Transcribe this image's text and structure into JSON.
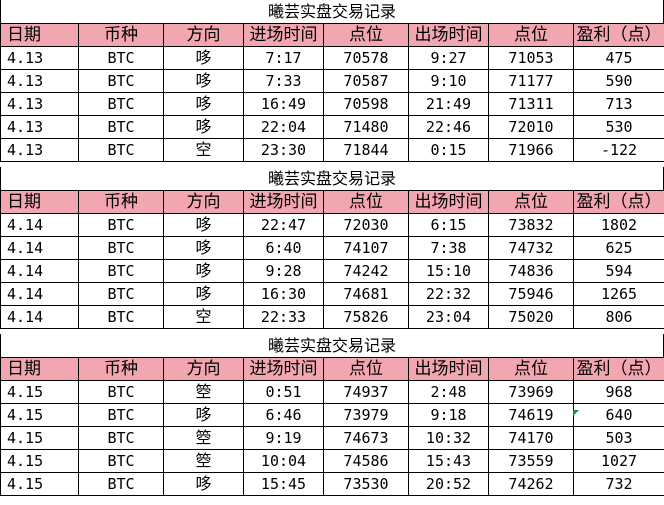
{
  "sheet": {
    "columns": [
      "日期",
      "币种",
      "方向",
      "进场时间",
      "点位",
      "出场时间",
      "点位",
      "盈利（点）"
    ],
    "sections": [
      {
        "title": "曦芸实盘交易记录",
        "rows": [
          [
            "4.13",
            "BTC",
            "哆",
            "7:17",
            "70578",
            "9:27",
            "71053",
            "475"
          ],
          [
            "4.13",
            "BTC",
            "哆",
            "7:33",
            "70587",
            "9:10",
            "71177",
            "590"
          ],
          [
            "4.13",
            "BTC",
            "哆",
            "16:49",
            "70598",
            "21:49",
            "71311",
            "713"
          ],
          [
            "4.13",
            "BTC",
            "哆",
            "22:04",
            "71480",
            "22:46",
            "72010",
            "530"
          ],
          [
            "4.13",
            "BTC",
            "空",
            "23:30",
            "71844",
            "0:15",
            "71966",
            "-122"
          ]
        ]
      },
      {
        "title": "曦芸实盘交易记录",
        "rows": [
          [
            "4.14",
            "BTC",
            "哆",
            "22:47",
            "72030",
            "6:15",
            "73832",
            "1802"
          ],
          [
            "4.14",
            "BTC",
            "哆",
            "6:40",
            "74107",
            "7:38",
            "74732",
            "625"
          ],
          [
            "4.14",
            "BTC",
            "哆",
            "9:28",
            "74242",
            "15:10",
            "74836",
            "594"
          ],
          [
            "4.14",
            "BTC",
            "哆",
            "16:30",
            "74681",
            "22:32",
            "75946",
            "1265"
          ],
          [
            "4.14",
            "BTC",
            "空",
            "22:33",
            "75826",
            "23:04",
            "75020",
            "806"
          ]
        ]
      },
      {
        "title": "曦芸实盘交易记录",
        "rows": [
          [
            "4.15",
            "BTC",
            "箜",
            "0:51",
            "74937",
            "2:48",
            "73969",
            "968"
          ],
          [
            "4.15",
            "BTC",
            "哆",
            "6:46",
            "73979",
            "9:18",
            "74619",
            "640"
          ],
          [
            "4.15",
            "BTC",
            "箜",
            "9:19",
            "74673",
            "10:32",
            "74170",
            "503"
          ],
          [
            "4.15",
            "BTC",
            "箜",
            "10:04",
            "74586",
            "15:43",
            "73559",
            "1027"
          ],
          [
            "4.15",
            "BTC",
            "哆",
            "15:45",
            "73530",
            "20:52",
            "74262",
            "732"
          ]
        ]
      }
    ],
    "marker_color": "#1a8f3a"
  }
}
